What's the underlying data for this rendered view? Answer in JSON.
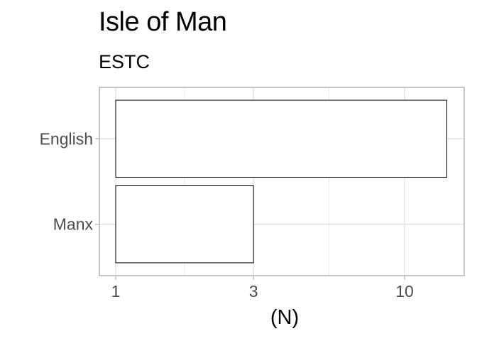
{
  "chart_data": {
    "type": "bar",
    "orientation": "horizontal",
    "title": "Isle of Man",
    "subtitle": "ESTC",
    "xlabel": "(N)",
    "ylabel": "",
    "x_scale": "log10",
    "x_ticks": [
      1,
      3,
      10
    ],
    "categories": [
      "English",
      "Manx"
    ],
    "values": [
      14,
      3
    ],
    "grid": true,
    "bar_fill": "#ffffff",
    "bar_stroke": "#000000",
    "panel_border_color": "#b3b3b3",
    "grid_color": "#dedede"
  }
}
